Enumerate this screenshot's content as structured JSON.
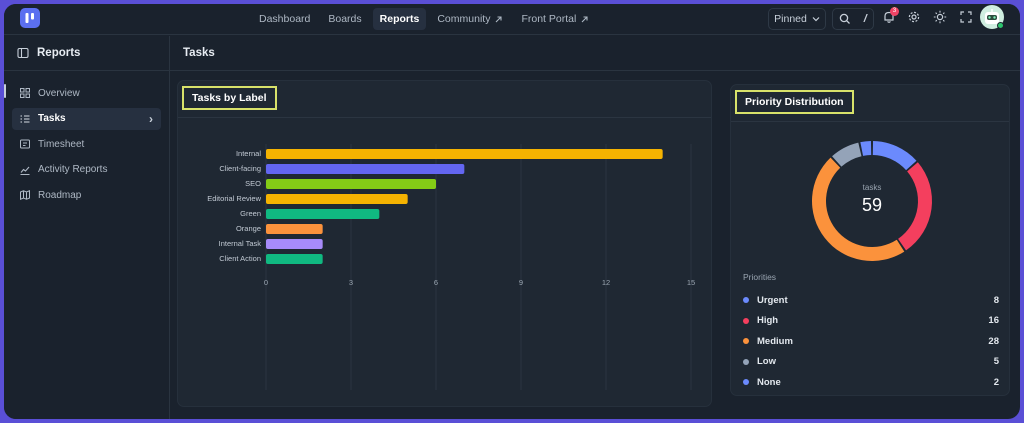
{
  "nav": {
    "items": [
      {
        "label": "Dashboard",
        "active": false,
        "external": false
      },
      {
        "label": "Boards",
        "active": false,
        "external": false
      },
      {
        "label": "Reports",
        "active": true,
        "external": false
      },
      {
        "label": "Community",
        "active": false,
        "external": true
      },
      {
        "label": "Front Portal",
        "active": false,
        "external": true
      }
    ],
    "pinned_label": "Pinned",
    "search_shortcut": "/",
    "notification_count": "3"
  },
  "sidebar": {
    "title": "Reports",
    "items": [
      {
        "label": "Overview",
        "icon": "grid-icon",
        "active": false
      },
      {
        "label": "Tasks",
        "icon": "list-icon",
        "active": true
      },
      {
        "label": "Timesheet",
        "icon": "timesheet-icon",
        "active": false
      },
      {
        "label": "Activity Reports",
        "icon": "chart-line-icon",
        "active": false
      },
      {
        "label": "Roadmap",
        "icon": "map-icon",
        "active": false
      }
    ]
  },
  "main": {
    "title": "Tasks"
  },
  "tasks_by_label": {
    "title": "Tasks by Label"
  },
  "priority": {
    "title": "Priority Distribution",
    "center_label": "tasks",
    "center_value": "59",
    "legend_title": "Priorities"
  },
  "chart_data": [
    {
      "type": "bar",
      "orientation": "horizontal",
      "categories": [
        "Internal",
        "Client-facing",
        "SEO",
        "Editorial Review",
        "Green",
        "Orange",
        "Internal Task",
        "Client Action"
      ],
      "values": [
        14,
        7,
        6,
        5,
        4,
        2,
        2,
        2
      ],
      "colors": [
        "#f5b301",
        "#6366f1",
        "#84cc16",
        "#f5b301",
        "#10b981",
        "#fb923c",
        "#a78bfa",
        "#10b981"
      ],
      "xlim": [
        0,
        15
      ],
      "xticks": [
        0,
        3,
        6,
        9,
        12,
        15
      ],
      "grid": true
    },
    {
      "type": "pie",
      "donut": true,
      "categories": [
        "Urgent",
        "High",
        "Medium",
        "Low",
        "None"
      ],
      "values": [
        8,
        16,
        28,
        5,
        2
      ],
      "colors": [
        "#6b8afd",
        "#f43f5e",
        "#fb923c",
        "#94a3b8",
        "#6b8afd"
      ],
      "legend": "bottom"
    }
  ]
}
